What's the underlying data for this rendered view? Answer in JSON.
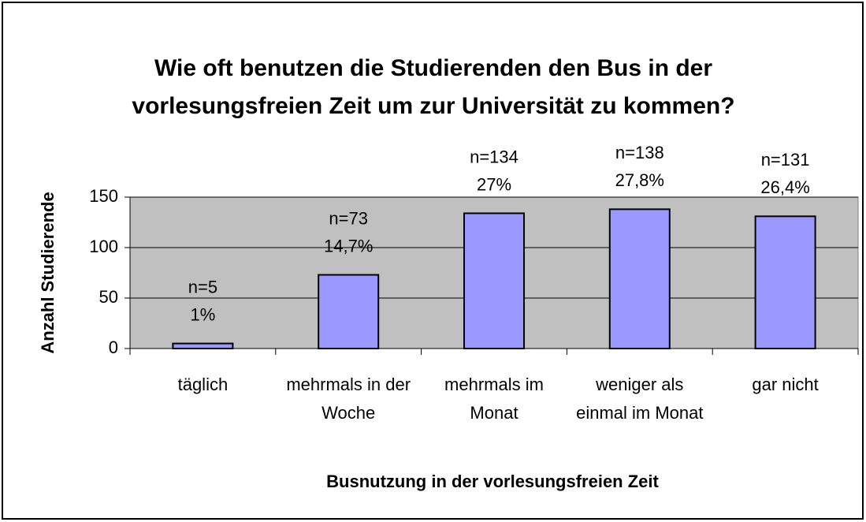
{
  "chart_data": {
    "type": "bar",
    "title": "Wie oft benutzen die Studierenden den Bus in der vorlesungsfreien Zeit um zur Universität zu kommen?",
    "x_label": "Busnutzung in der vorlesungsfreien Zeit",
    "y_label": "Anzahl Studierende",
    "categories": [
      "täglich",
      "mehrmals in der Woche",
      "mehrmals im Monat",
      "weniger als einmal im Monat",
      "gar nicht"
    ],
    "values": [
      5,
      73,
      134,
      138,
      131
    ],
    "value_labels": [
      "n=5",
      "n=73",
      "n=134",
      "n=138",
      "n=131"
    ],
    "percentages": [
      1,
      14.7,
      27,
      27.8,
      26.4
    ],
    "percentage_labels": [
      "1%",
      "14,7%",
      "27%",
      "27,8%",
      "26,4%"
    ],
    "color": "#9999ff",
    "ylim": [
      0,
      150
    ],
    "yticks": [
      0,
      50,
      100,
      150
    ],
    "grid": true
  }
}
